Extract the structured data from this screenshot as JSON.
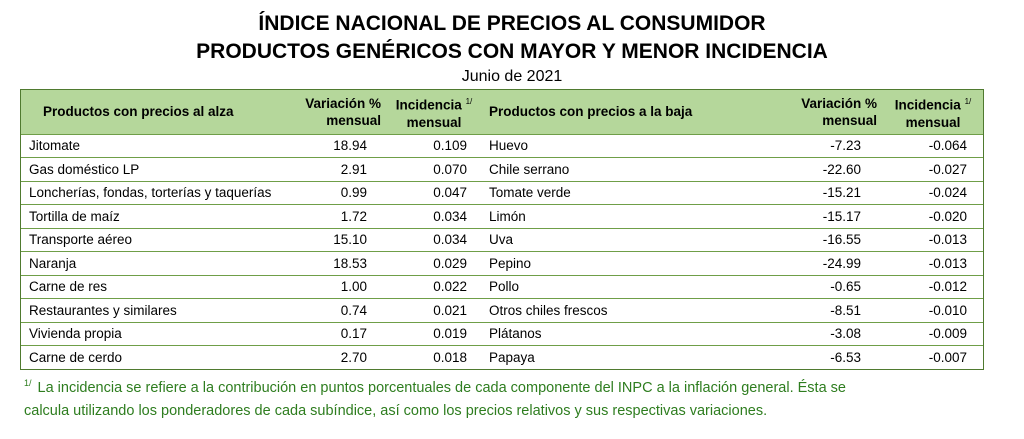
{
  "header": {
    "title_line1": "ÍNDICE NACIONAL DE PRECIOS AL CONSUMIDOR",
    "title_line2": "PRODUCTOS GENÉRICOS CON MAYOR Y MENOR INCIDENCIA",
    "subtitle": "Junio de 2021"
  },
  "table": {
    "columns": {
      "up_product": "Productos con precios al alza",
      "up_var_line1": "Variación %",
      "up_var_line2": "mensual",
      "up_inc_line1": "Incidencia",
      "up_inc_sup": "1/",
      "up_inc_line2": "mensual",
      "down_product": "Productos con precios a la baja",
      "down_var_line1": "Variación %",
      "down_var_line2": "mensual",
      "down_inc_line1": "Incidencia",
      "down_inc_sup": "1/",
      "down_inc_line2": "mensual"
    },
    "rows": [
      {
        "up_name": "Jitomate",
        "up_var": "18.94",
        "up_inc": "0.109",
        "down_name": "Huevo",
        "down_var": "-7.23",
        "down_inc": "-0.064"
      },
      {
        "up_name": "Gas doméstico LP",
        "up_var": "2.91",
        "up_inc": "0.070",
        "down_name": "Chile serrano",
        "down_var": "-22.60",
        "down_inc": "-0.027"
      },
      {
        "up_name": "Loncherías, fondas, torterías y taquerías",
        "up_var": "0.99",
        "up_inc": "0.047",
        "down_name": "Tomate verde",
        "down_var": "-15.21",
        "down_inc": "-0.024"
      },
      {
        "up_name": "Tortilla de maíz",
        "up_var": "1.72",
        "up_inc": "0.034",
        "down_name": "Limón",
        "down_var": "-15.17",
        "down_inc": "-0.020"
      },
      {
        "up_name": "Transporte aéreo",
        "up_var": "15.10",
        "up_inc": "0.034",
        "down_name": "Uva",
        "down_var": "-16.55",
        "down_inc": "-0.013"
      },
      {
        "up_name": "Naranja",
        "up_var": "18.53",
        "up_inc": "0.029",
        "down_name": "Pepino",
        "down_var": "-24.99",
        "down_inc": "-0.013"
      },
      {
        "up_name": "Carne de res",
        "up_var": "1.00",
        "up_inc": "0.022",
        "down_name": "Pollo",
        "down_var": "-0.65",
        "down_inc": "-0.012"
      },
      {
        "up_name": "Restaurantes y similares",
        "up_var": "0.74",
        "up_inc": "0.021",
        "down_name": "Otros chiles frescos",
        "down_var": "-8.51",
        "down_inc": "-0.010"
      },
      {
        "up_name": "Vivienda propia",
        "up_var": "0.17",
        "up_inc": "0.019",
        "down_name": "Plátanos",
        "down_var": "-3.08",
        "down_inc": "-0.009"
      },
      {
        "up_name": "Carne de cerdo",
        "up_var": "2.70",
        "up_inc": "0.018",
        "down_name": "Papaya",
        "down_var": "-6.53",
        "down_inc": "-0.007"
      }
    ]
  },
  "footnote": {
    "mark": "1/",
    "line1": "La incidencia se refiere a la contribución en puntos porcentuales de cada componente del INPC a la inflación general. Ésta se",
    "line2": "calcula utilizando los ponderadores de cada subíndice, así como los precios relativos y sus respectivas variaciones."
  },
  "colors": {
    "header_fill": "#b5d79b",
    "border": "#6f9e48",
    "footnote_text": "#2e7d1f"
  }
}
